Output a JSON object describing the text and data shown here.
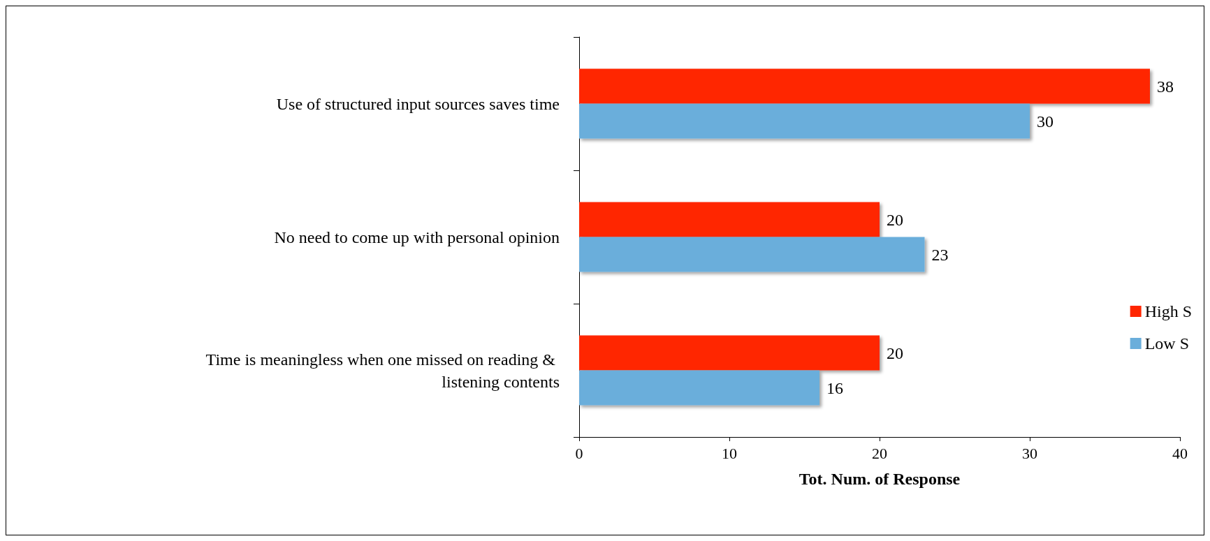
{
  "chart_data": {
    "type": "bar",
    "orientation": "horizontal",
    "xlabel": "Tot. Num. of Response",
    "categories": [
      "Use of structured input sources saves time",
      "No need to come up with personal opinion",
      "Time is meaningless when one missed on reading & listening contents"
    ],
    "series": [
      {
        "name": "High S",
        "color": "#ff2600",
        "values": [
          38,
          20,
          20
        ]
      },
      {
        "name": "Low S",
        "color": "#6aaedb",
        "values": [
          30,
          23,
          16
        ]
      }
    ],
    "xlim": [
      0,
      40
    ],
    "xticks": [
      0,
      10,
      20,
      30,
      40
    ],
    "grid": false,
    "legend": "right",
    "data_labels": true
  }
}
